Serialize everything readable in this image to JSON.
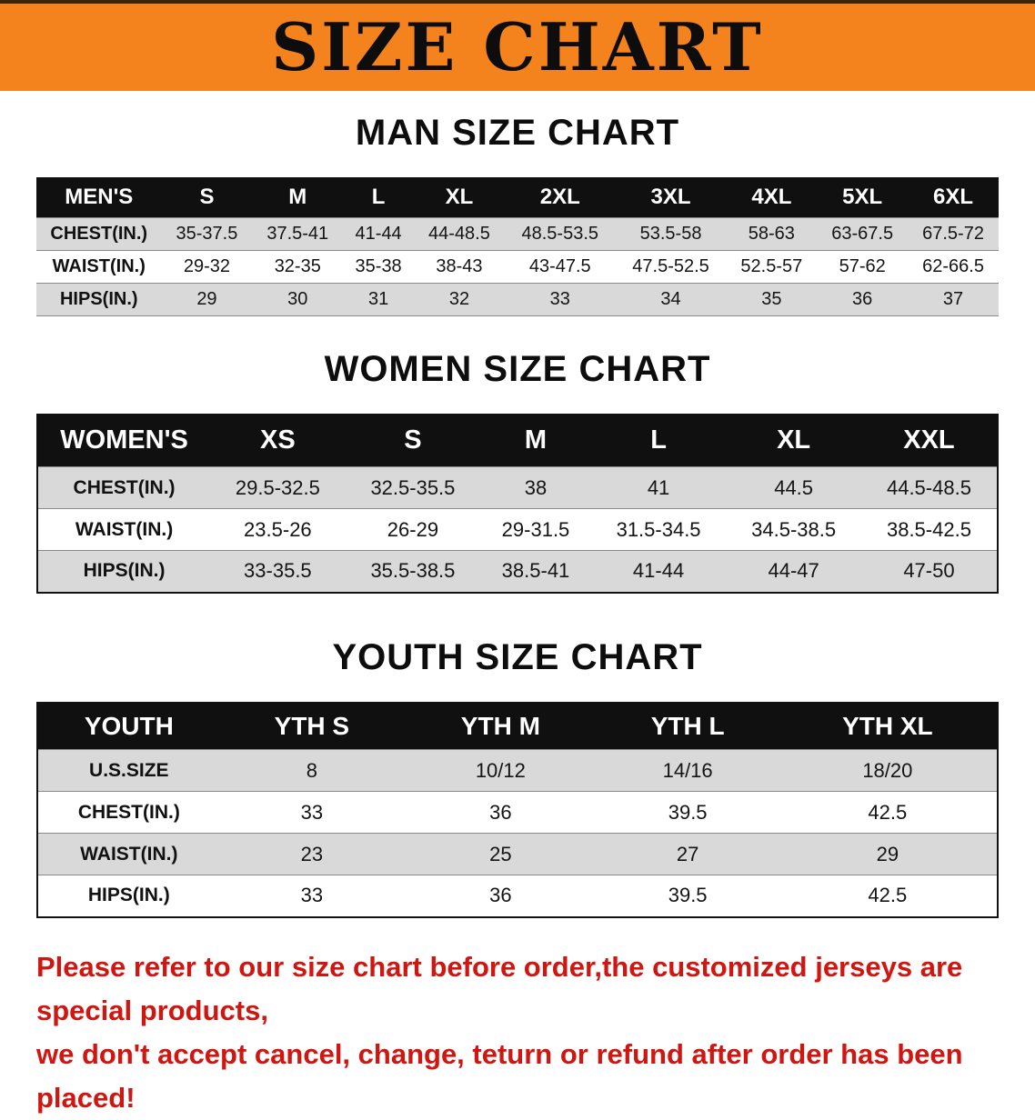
{
  "banner": {
    "title": "SIZE CHART"
  },
  "colors": {
    "banner_bg": "#f4831d",
    "header_bg": "#101010",
    "row_alt": "#d9d9d9",
    "note_red": "#d01610"
  },
  "sections": {
    "men": {
      "heading": "MAN SIZE CHART",
      "table": {
        "header": [
          "MEN'S",
          "S",
          "M",
          "L",
          "XL",
          "2XL",
          "3XL",
          "4XL",
          "5XL",
          "6XL"
        ],
        "rows": [
          {
            "label": "CHEST(IN.)",
            "values": [
              "35-37.5",
              "37.5-41",
              "41-44",
              "44-48.5",
              "48.5-53.5",
              "53.5-58",
              "58-63",
              "63-67.5",
              "67.5-72"
            ]
          },
          {
            "label": "WAIST(IN.)",
            "values": [
              "29-32",
              "32-35",
              "35-38",
              "38-43",
              "43-47.5",
              "47.5-52.5",
              "52.5-57",
              "57-62",
              "62-66.5"
            ]
          },
          {
            "label": "HIPS(IN.)",
            "values": [
              "29",
              "30",
              "31",
              "32",
              "33",
              "34",
              "35",
              "36",
              "37"
            ]
          }
        ]
      }
    },
    "women": {
      "heading": "WOMEN SIZE CHART",
      "table": {
        "header": [
          "WOMEN'S",
          "XS",
          "S",
          "M",
          "L",
          "XL",
          "XXL"
        ],
        "rows": [
          {
            "label": "CHEST(IN.)",
            "values": [
              "29.5-32.5",
              "32.5-35.5",
              "38",
              "41",
              "44.5",
              "44.5-48.5"
            ]
          },
          {
            "label": "WAIST(IN.)",
            "values": [
              "23.5-26",
              "26-29",
              "29-31.5",
              "31.5-34.5",
              "34.5-38.5",
              "38.5-42.5"
            ]
          },
          {
            "label": "HIPS(IN.)",
            "values": [
              "33-35.5",
              "35.5-38.5",
              "38.5-41",
              "41-44",
              "44-47",
              "47-50"
            ]
          }
        ]
      }
    },
    "youth": {
      "heading": "YOUTH SIZE CHART",
      "table": {
        "header": [
          "YOUTH",
          "YTH S",
          "YTH M",
          "YTH L",
          "YTH XL"
        ],
        "rows": [
          {
            "label": "U.S.SIZE",
            "values": [
              "8",
              "10/12",
              "14/16",
              "18/20"
            ]
          },
          {
            "label": "CHEST(IN.)",
            "values": [
              "33",
              "36",
              "39.5",
              "42.5"
            ]
          },
          {
            "label": "WAIST(IN.)",
            "values": [
              "23",
              "25",
              "27",
              "29"
            ]
          },
          {
            "label": "HIPS(IN.)",
            "values": [
              "33",
              "36",
              "39.5",
              "42.5"
            ]
          }
        ]
      }
    }
  },
  "note": {
    "line1": "Please refer to our size chart before order,the customized jerseys are special products,",
    "line2": "we don't accept cancel, change, teturn or refund after order has been placed!"
  }
}
